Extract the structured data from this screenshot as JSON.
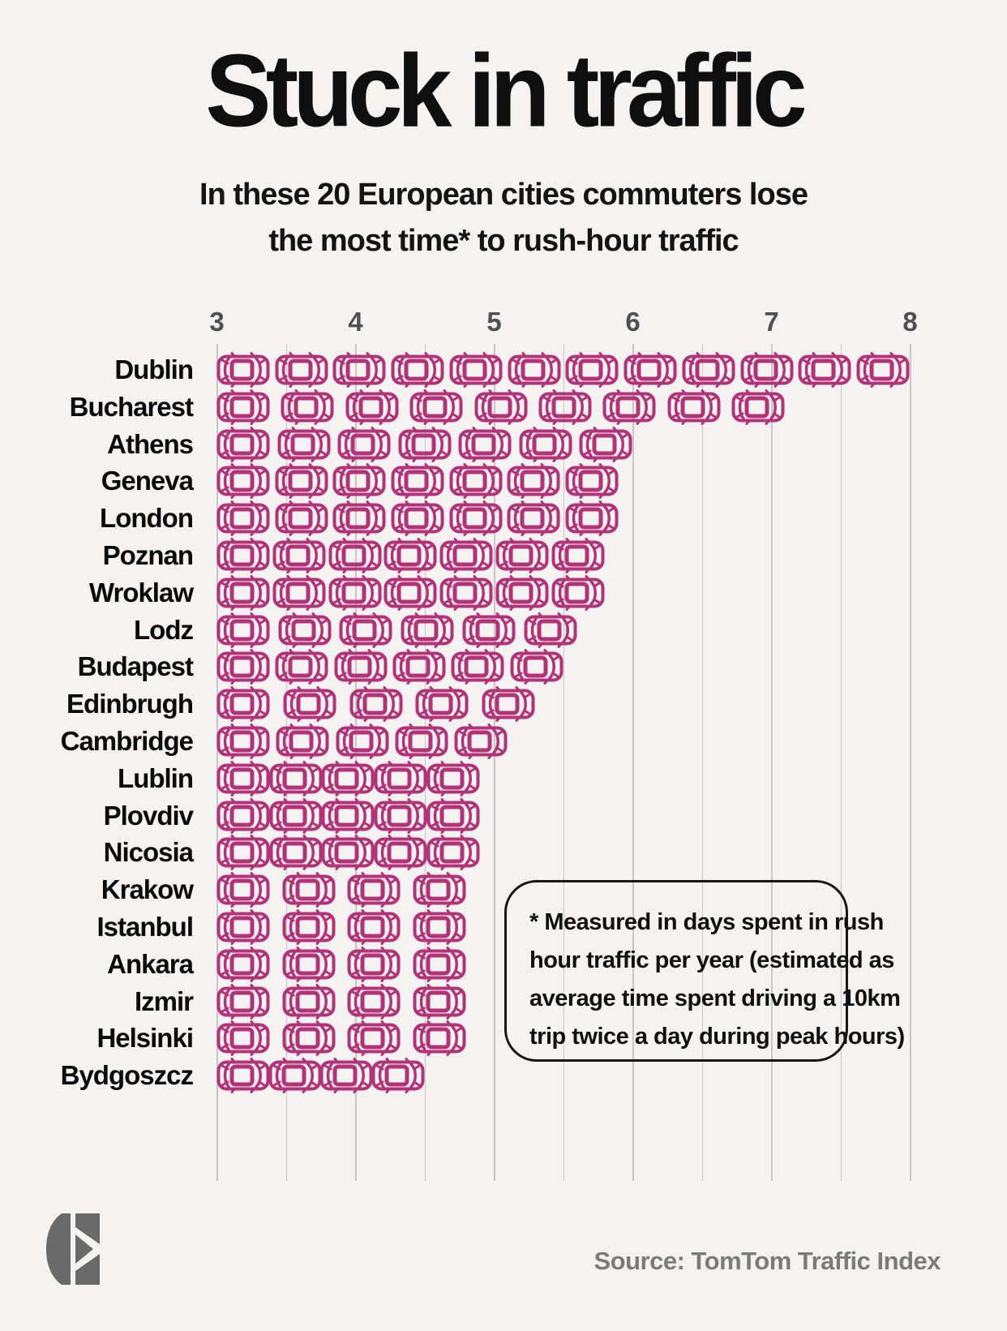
{
  "title": "Stuck in traffic",
  "subtitle": {
    "line1": "In these 20 European cities commuters lose",
    "line2": "the most time* to rush-hour traffic"
  },
  "annotation": {
    "lines": [
      "* Measured in days spent in rush",
      "hour traffic per year (estimated as",
      "average time spent driving a 10km",
      "trip twice a day during peak hours)"
    ]
  },
  "source": "Source: TomTom Traffic Index",
  "logo": "stylized-e-logo",
  "colors": {
    "background": "#f4f3f1",
    "car": "#b23378",
    "gridline": "#c9c7c5",
    "text": "#0f0f0f",
    "tick_text": "#505054",
    "source_text": "#7b7b7b",
    "logo": "#6a6a6a"
  },
  "chart_data": {
    "type": "bar",
    "variant": "pictogram-bar",
    "icon": "car-icon",
    "title": "Stuck in traffic",
    "subtitle": "In these 20 European cities commuters lose the most time* to rush-hour traffic",
    "xlabel": "days spent in rush-hour traffic per year",
    "ylabel": "",
    "axis": {
      "min": 3,
      "max": 8,
      "ticks": [
        3,
        4,
        5,
        6,
        7,
        8
      ],
      "gridline_step": 0.5,
      "tick_position": "top"
    },
    "grid": true,
    "categories": [
      "Dublin",
      "Bucharest",
      "Athens",
      "Geneva",
      "London",
      "Poznan",
      "Wroklaw",
      "Lodz",
      "Budapest",
      "Edinbrugh",
      "Cambridge",
      "Lublin",
      "Plovdiv",
      "Nicosia",
      "Krakow",
      "Istanbul",
      "Ankara",
      "Izmir",
      "Helsinki",
      "Bydgoszcz"
    ],
    "values": [
      8.0,
      7.1,
      6.0,
      5.9,
      5.9,
      5.8,
      5.8,
      5.6,
      5.5,
      5.3,
      5.1,
      4.9,
      4.9,
      4.9,
      4.8,
      4.8,
      4.8,
      4.8,
      4.8,
      4.5
    ],
    "car_counts": [
      12,
      9,
      7,
      7,
      7,
      7,
      7,
      6,
      6,
      5,
      5,
      5,
      5,
      5,
      4,
      4,
      4,
      4,
      4,
      4
    ]
  }
}
